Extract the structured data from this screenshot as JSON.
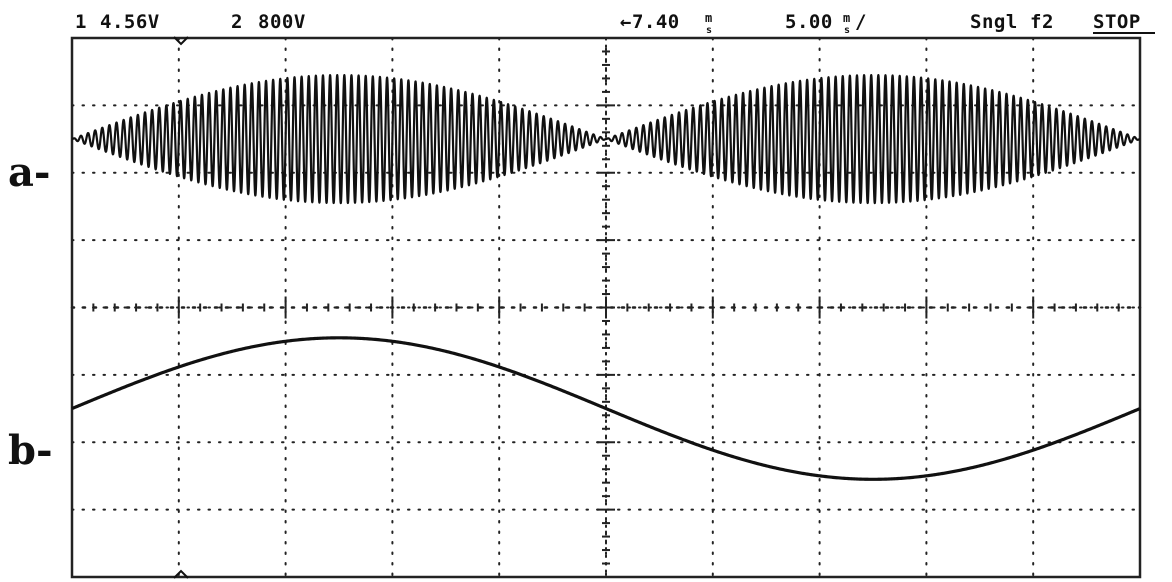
{
  "header": {
    "ch1_label": "1",
    "ch1_scale": "4.56V",
    "ch2_label": "2",
    "ch2_scale": "800V",
    "time_delay": "←7.40",
    "delay_unit": "m",
    "delay_subunit": "s",
    "time_scale": "5.00",
    "scale_unit": "m",
    "scale_subunit": "s",
    "scale_suffix": "/",
    "trigger_mode": "Sngl",
    "trigger_source": "f2",
    "run_state": "STOP"
  },
  "trace_labels": {
    "a": "a-",
    "b": "b-"
  },
  "colors": {
    "trace": "#111111",
    "grid": "#222222",
    "background": "#ffffff"
  },
  "chart_data": {
    "type": "line",
    "title": "",
    "xlabel": "",
    "ylabel": "",
    "grid": true,
    "grid_divisions": {
      "x": 10,
      "y": 8
    },
    "x_range_div": [
      0,
      10
    ],
    "series": [
      {
        "key": "a",
        "kind": "amplitude-modulated carrier",
        "center_div": 1.5,
        "envelope_peak_div": 0.95,
        "envelope_nulls_div": [
          0,
          5.0,
          10.0
        ],
        "envelope_peaks_div": [
          2.5,
          7.5
        ],
        "carrier_cycles": 150
      },
      {
        "key": "b",
        "kind": "sine",
        "center_div": 5.5,
        "amplitude_div": 1.05,
        "zero_crossings_div": [
          0,
          5.0,
          10.0
        ],
        "max_at_div": 2.5,
        "min_at_div": 7.5
      }
    ]
  }
}
